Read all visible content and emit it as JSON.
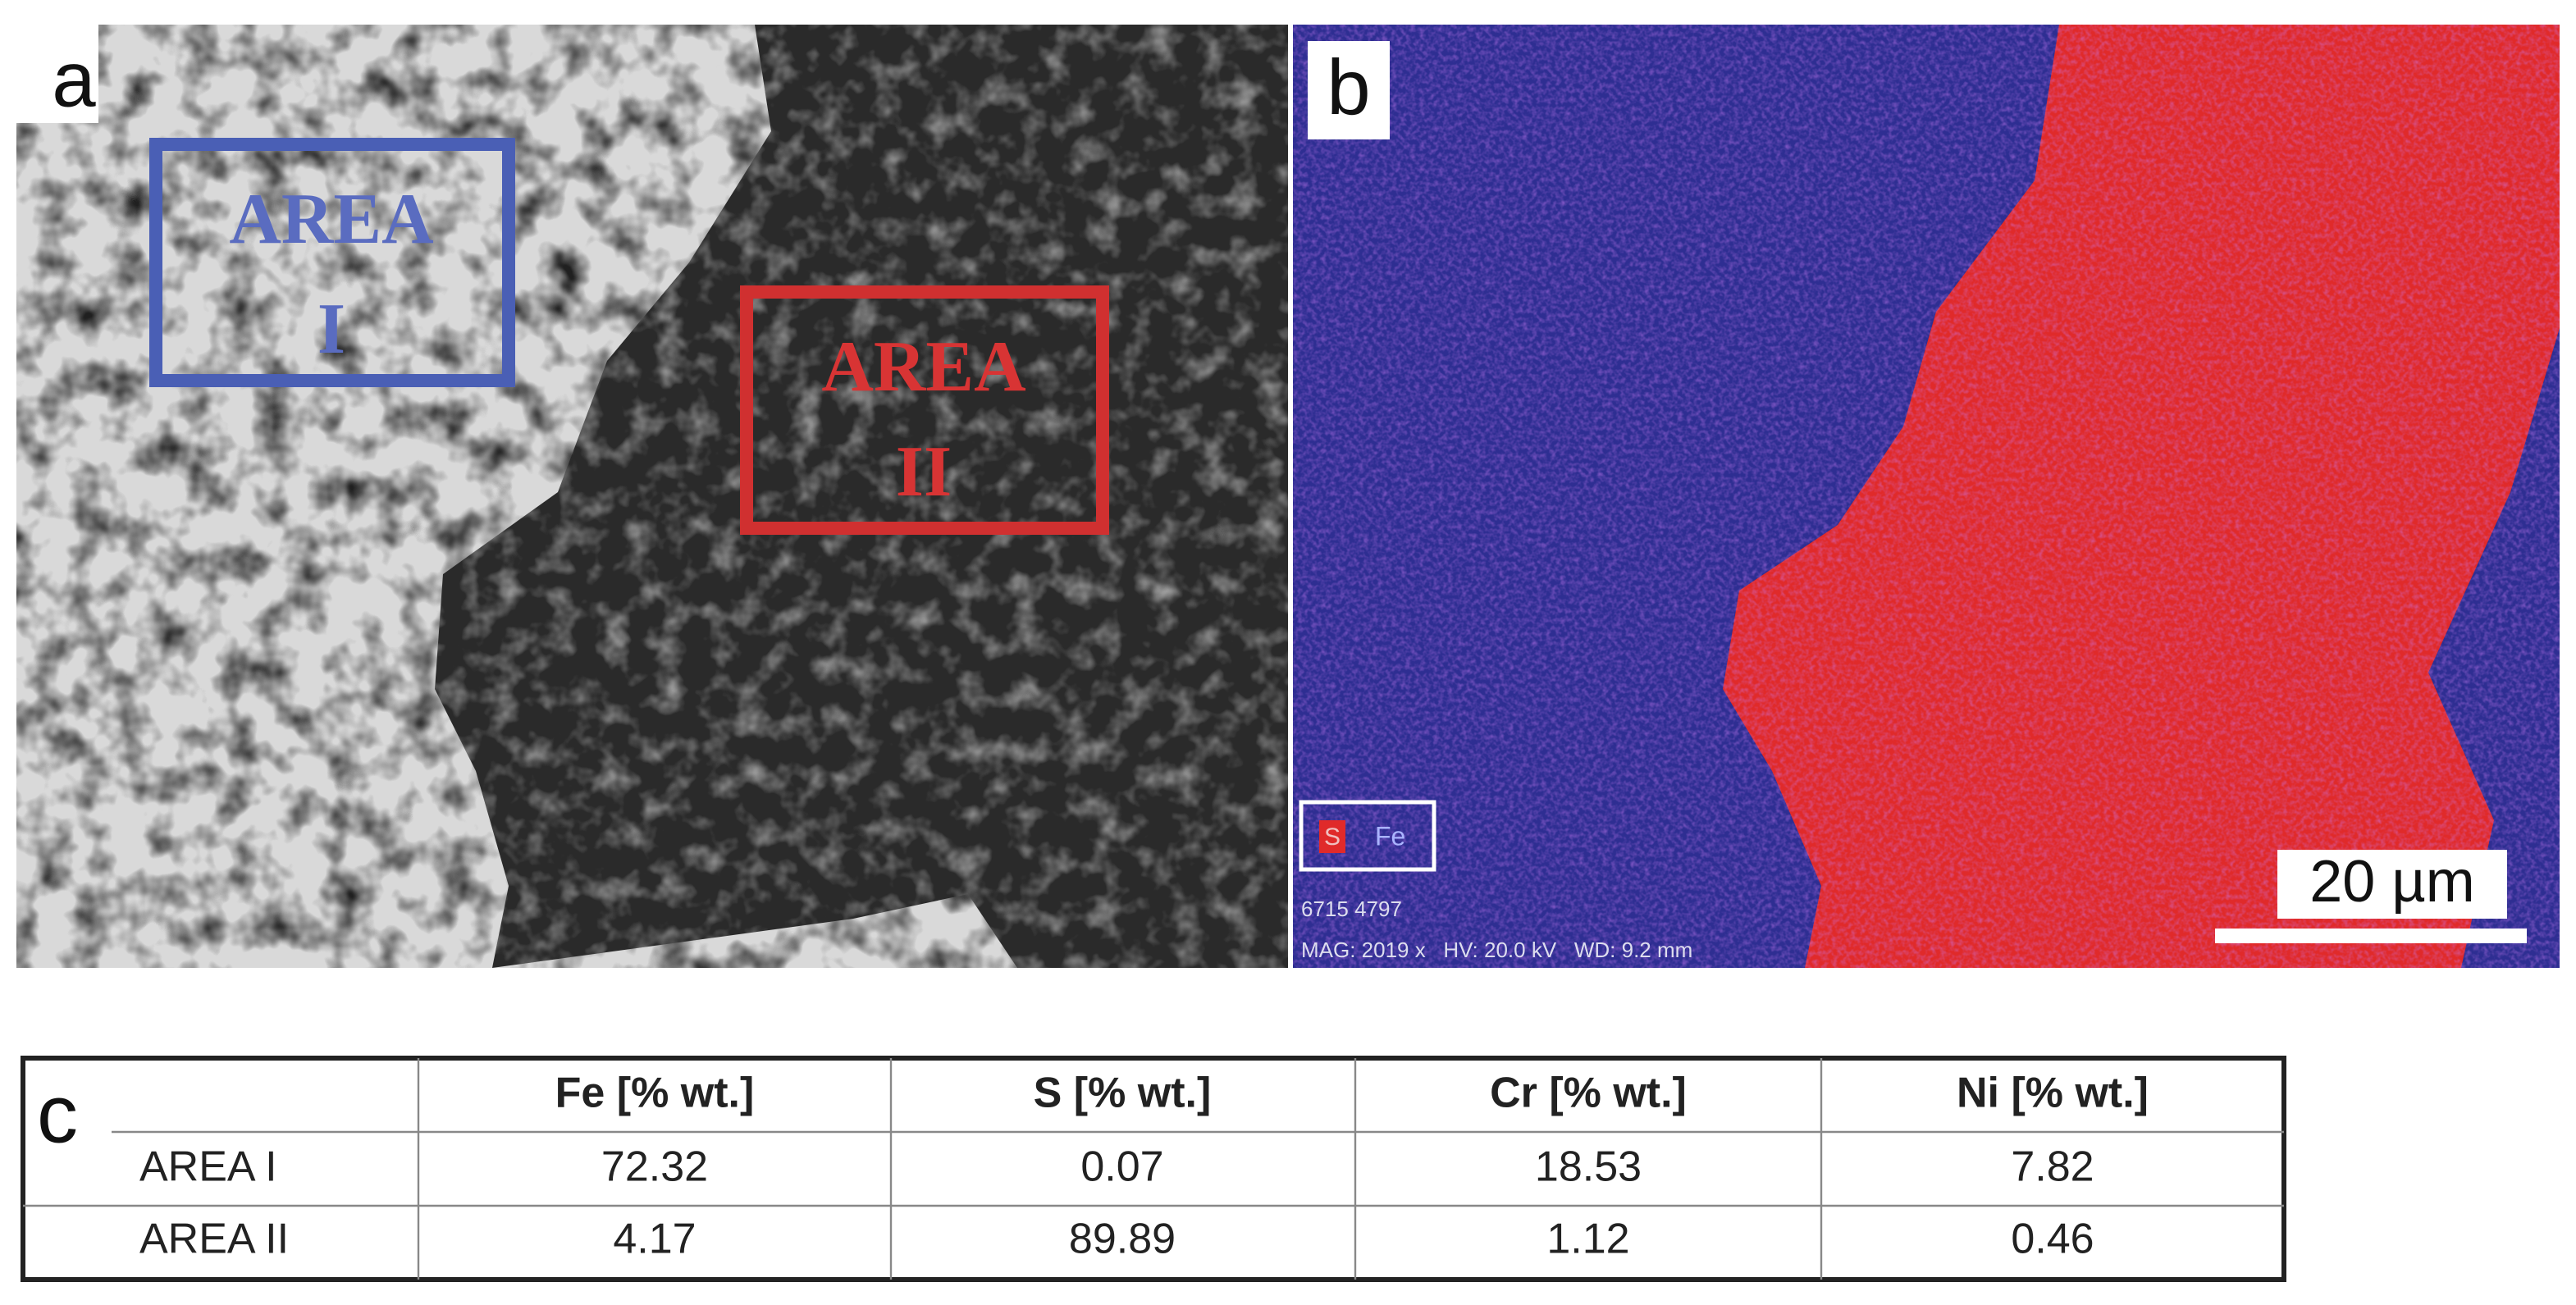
{
  "panel_a": {
    "label": "a",
    "areas": [
      {
        "lines": [
          "AREA",
          "I"
        ]
      },
      {
        "lines": [
          "AREA",
          "II"
        ]
      }
    ]
  },
  "panel_b": {
    "label": "b",
    "legend": [
      "S",
      "Fe"
    ],
    "info": [
      "6715 4797",
      "MAG: 2019 x   HV: 20.0 kV   WD: 9.2 mm"
    ],
    "scale_bar": "20 µm"
  },
  "table": {
    "label": "c",
    "columns": [
      "Fe [% wt.]",
      "S [% wt.]",
      "Cr [% wt.]",
      "Ni [% wt.]"
    ],
    "rows": [
      {
        "label": "AREA I",
        "values": [
          "72.32",
          "0.07",
          "18.53",
          "7.82"
        ]
      },
      {
        "label": "AREA II",
        "values": [
          "4.17",
          "89.89",
          "1.12",
          "0.46"
        ]
      }
    ]
  }
}
